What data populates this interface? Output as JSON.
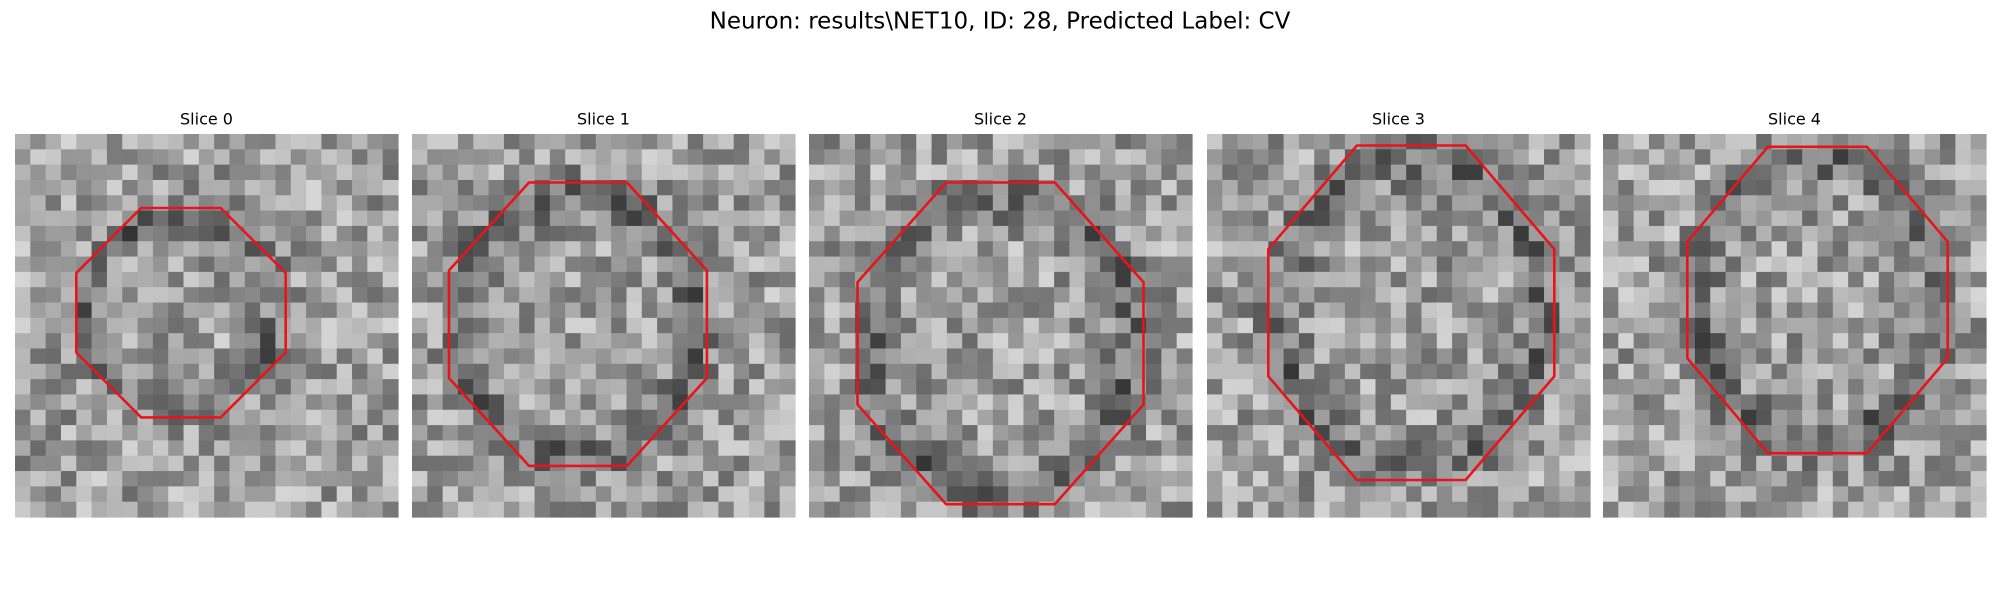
{
  "title": "Neuron: results\\NET10, ID: 28, Predicted Label: CV",
  "panels": [
    {
      "title": "Slice 0"
    },
    {
      "title": "Slice 1"
    },
    {
      "title": "Slice 2"
    },
    {
      "title": "Slice 3"
    },
    {
      "title": "Slice 4"
    }
  ]
}
